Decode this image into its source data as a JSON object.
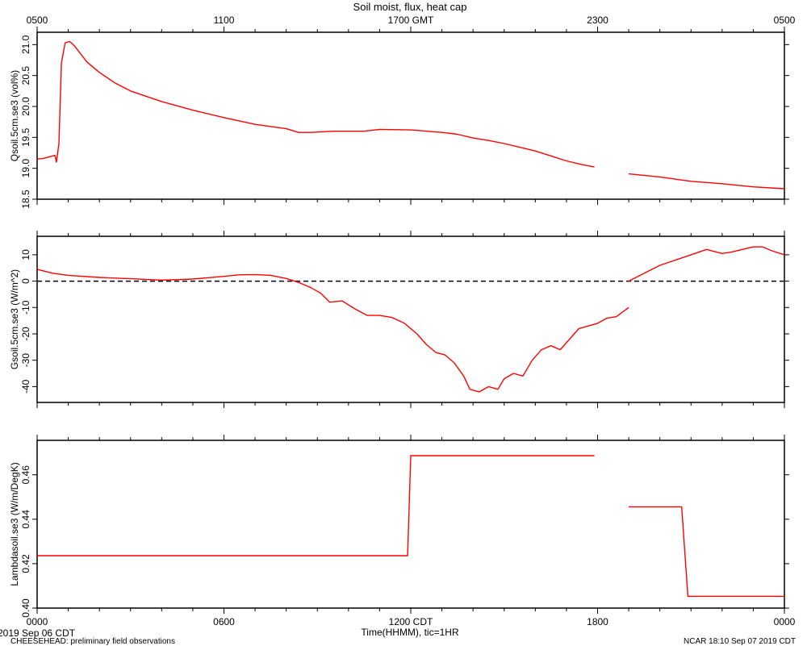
{
  "chart_data": {
    "title": "Soil moist, flux, heat cap",
    "top_axis": {
      "labels": [
        "0500",
        "1100",
        "1700 GMT",
        "2300",
        "0500"
      ]
    },
    "bottom_axis": {
      "labels": [
        "0000",
        "0600",
        "1200 CDT",
        "1800",
        "0000"
      ],
      "xlabel": "Time(HHMM), tic=1HR"
    },
    "footer": {
      "date": "2019 Sep 06 CDT",
      "project": "CHEESEHEAD: preliminary field observations",
      "stamp": "NCAR 18:10 Sep 07 2019 CDT"
    },
    "x_unit": "hours since 00:00 CDT",
    "xlim": [
      0,
      24
    ],
    "line_color": "#ff0000",
    "panels": [
      {
        "type": "line",
        "ylabel": "Qsoil.5cm.se3 (vol%)",
        "ylim": [
          18.5,
          21.2
        ],
        "yticks": [
          18.5,
          19.0,
          19.5,
          20.0,
          20.5,
          21.0
        ],
        "ytick_labels": [
          "18.5",
          "19.0",
          "19.5",
          "20.0",
          "20.5",
          "21.0"
        ],
        "series": [
          [
            [
              0,
              19.15
            ],
            [
              0.2,
              19.16
            ],
            [
              0.5,
              19.2
            ],
            [
              0.57,
              19.21
            ],
            [
              0.62,
              19.1
            ],
            [
              0.7,
              19.4
            ],
            [
              0.78,
              20.7
            ],
            [
              0.9,
              21.03
            ],
            [
              1.05,
              21.05
            ],
            [
              1.2,
              20.98
            ],
            [
              1.4,
              20.85
            ],
            [
              1.6,
              20.72
            ],
            [
              2.0,
              20.55
            ],
            [
              2.5,
              20.38
            ],
            [
              3.0,
              20.25
            ],
            [
              4.0,
              20.08
            ],
            [
              5.0,
              19.94
            ],
            [
              6.0,
              19.82
            ],
            [
              7.0,
              19.71
            ],
            [
              8.0,
              19.64
            ],
            [
              8.4,
              19.58
            ],
            [
              8.8,
              19.58
            ],
            [
              9.5,
              19.6
            ],
            [
              10.5,
              19.6
            ],
            [
              11.0,
              19.63
            ],
            [
              12.0,
              19.62
            ],
            [
              13.0,
              19.58
            ],
            [
              13.5,
              19.55
            ],
            [
              14.0,
              19.49
            ],
            [
              14.5,
              19.45
            ],
            [
              15.0,
              19.4
            ],
            [
              15.5,
              19.34
            ],
            [
              16.0,
              19.28
            ],
            [
              16.5,
              19.2
            ],
            [
              17.0,
              19.12
            ],
            [
              17.5,
              19.06
            ],
            [
              17.9,
              19.02
            ]
          ],
          [
            [
              19.0,
              18.91
            ],
            [
              20.0,
              18.86
            ],
            [
              21.0,
              18.79
            ],
            [
              22.0,
              18.75
            ],
            [
              23.0,
              18.7
            ],
            [
              24.0,
              18.67
            ]
          ]
        ]
      },
      {
        "type": "line",
        "ylabel": "Gsoil.5cm.se3 (W/m^2)",
        "ylim": [
          -46,
          17
        ],
        "yticks": [
          -40,
          -30,
          -20,
          -10,
          0,
          10
        ],
        "ytick_labels": [
          "-40",
          "-30",
          "-20",
          "-10",
          "0",
          "10"
        ],
        "reference_line": 0,
        "series": [
          [
            [
              0,
              4.5
            ],
            [
              0.5,
              3.0
            ],
            [
              1.0,
              2.2
            ],
            [
              2.0,
              1.4
            ],
            [
              3.0,
              0.9
            ],
            [
              4.0,
              0.4
            ],
            [
              5.0,
              0.8
            ],
            [
              6.0,
              1.8
            ],
            [
              6.5,
              2.4
            ],
            [
              7.0,
              2.5
            ],
            [
              7.5,
              2.2
            ],
            [
              8.0,
              1.0
            ],
            [
              8.4,
              -0.5
            ],
            [
              8.8,
              -2.5
            ],
            [
              9.1,
              -4.5
            ],
            [
              9.4,
              -8.0
            ],
            [
              9.8,
              -7.5
            ],
            [
              10.2,
              -10.5
            ],
            [
              10.6,
              -13.0
            ],
            [
              11.0,
              -13.0
            ],
            [
              11.4,
              -13.8
            ],
            [
              11.8,
              -16.0
            ],
            [
              12.2,
              -20.0
            ],
            [
              12.5,
              -24.0
            ],
            [
              12.8,
              -27.0
            ],
            [
              13.1,
              -28.0
            ],
            [
              13.4,
              -31.0
            ],
            [
              13.7,
              -36.0
            ],
            [
              13.9,
              -41.0
            ],
            [
              14.2,
              -42.0
            ],
            [
              14.5,
              -40.0
            ],
            [
              14.8,
              -41.0
            ],
            [
              15.0,
              -37.0
            ],
            [
              15.3,
              -35.0
            ],
            [
              15.6,
              -36.0
            ],
            [
              15.9,
              -30.0
            ],
            [
              16.2,
              -26.0
            ],
            [
              16.5,
              -24.5
            ],
            [
              16.8,
              -26.0
            ],
            [
              17.1,
              -22.0
            ],
            [
              17.4,
              -18.0
            ],
            [
              17.7,
              -17.0
            ],
            [
              18.0,
              -16.0
            ],
            [
              18.3,
              -14.0
            ],
            [
              18.6,
              -13.5
            ],
            [
              19.0,
              -10.0
            ]
          ],
          [
            [
              19.0,
              0.0
            ],
            [
              19.5,
              3.0
            ],
            [
              20.0,
              6.0
            ],
            [
              21.0,
              10.0
            ],
            [
              21.5,
              12.0
            ],
            [
              22.0,
              10.5
            ],
            [
              22.3,
              11.0
            ],
            [
              23.0,
              13.0
            ],
            [
              23.3,
              13.0
            ],
            [
              23.6,
              11.5
            ],
            [
              24.0,
              10.0
            ]
          ]
        ]
      },
      {
        "type": "line",
        "ylabel": "Lambdasoil.se3 (W/m/DegK)",
        "ylim": [
          0.4,
          0.4755
        ],
        "yticks": [
          0.4,
          0.42,
          0.44,
          0.46
        ],
        "ytick_labels": [
          "0.40",
          "0.42",
          "0.44",
          "0.46"
        ],
        "series": [
          [
            [
              0,
              0.4236
            ],
            [
              11.9,
              0.4236
            ],
            [
              12.0,
              0.4686
            ],
            [
              17.9,
              0.4686
            ]
          ],
          [
            [
              19.0,
              0.4456
            ],
            [
              20.7,
              0.4456
            ],
            [
              20.9,
              0.4053
            ],
            [
              24.0,
              0.4053
            ]
          ]
        ]
      }
    ]
  }
}
